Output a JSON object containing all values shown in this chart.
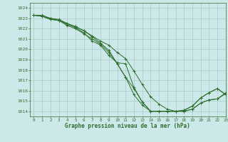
{
  "title": "Graphe pression niveau de la mer (hPa)",
  "bg_color": "#cce8e8",
  "grid_color": "#aacccc",
  "line_color": "#2d6e2d",
  "marker_color": "#2d6e2d",
  "xlim": [
    -0.5,
    23
  ],
  "ylim": [
    1013.5,
    1024.5
  ],
  "yticks": [
    1014,
    1015,
    1016,
    1017,
    1018,
    1019,
    1020,
    1021,
    1022,
    1023,
    1024
  ],
  "xticks": [
    0,
    1,
    2,
    3,
    4,
    5,
    6,
    7,
    8,
    9,
    10,
    11,
    12,
    13,
    14,
    15,
    16,
    17,
    18,
    19,
    20,
    21,
    22,
    23
  ],
  "series": [
    [
      1023.3,
      1023.2,
      1023.0,
      1022.8,
      1022.5,
      1022.2,
      1021.8,
      1021.2,
      1020.6,
      1019.9,
      1018.6,
      1017.3,
      1016.2,
      1014.9,
      1014.0,
      1014.0,
      1014.0,
      1014.0,
      1014.0,
      1014.2,
      1014.8,
      1015.1,
      1015.2,
      1015.7
    ],
    [
      1023.3,
      1023.2,
      1022.9,
      1022.8,
      1022.3,
      1022.0,
      1021.5,
      1021.0,
      1020.5,
      1019.7,
      1018.6,
      1017.3,
      1015.6,
      1014.6,
      1014.0,
      1014.0,
      1014.0,
      1014.0,
      1014.0,
      1014.2,
      1014.8,
      1015.1,
      1015.2,
      1015.8
    ],
    [
      1023.3,
      1023.2,
      1022.9,
      1022.8,
      1022.4,
      1022.1,
      1021.6,
      1020.8,
      1020.4,
      1019.4,
      1018.7,
      1018.6,
      1016.3,
      1014.9,
      1014.0,
      1014.0,
      1014.0,
      1014.0,
      1014.1,
      1014.5,
      1015.3,
      1015.8,
      1016.2,
      1015.6
    ],
    [
      1023.3,
      1023.3,
      1023.0,
      1022.9,
      1022.5,
      1022.2,
      1021.8,
      1021.3,
      1020.8,
      1020.4,
      1019.7,
      1019.1,
      1017.9,
      1016.6,
      1015.4,
      1014.7,
      1014.2,
      1014.0,
      1014.1,
      1014.5,
      1015.3,
      1015.8,
      1016.2,
      1015.6
    ]
  ]
}
